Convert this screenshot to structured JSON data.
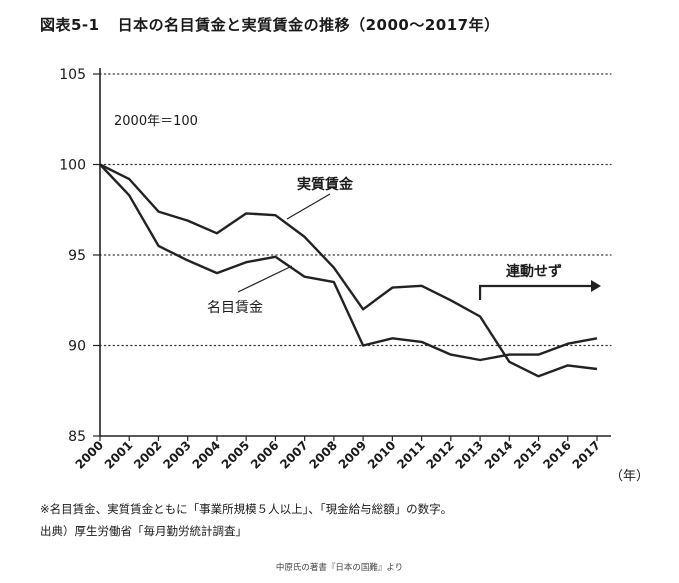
{
  "figure": {
    "number": "図表5-1",
    "title": "日本の名目賃金と実質賃金の推移（2000～2017年）"
  },
  "chart_data": {
    "type": "line",
    "x": [
      "2000",
      "2001",
      "2002",
      "2003",
      "2004",
      "2005",
      "2006",
      "2007",
      "2008",
      "2009",
      "2010",
      "2011",
      "2012",
      "2013",
      "2014",
      "2015",
      "2016",
      "2017"
    ],
    "xunit": "（年）",
    "ylim": [
      85,
      105
    ],
    "yticks": [
      85,
      90,
      95,
      100,
      105
    ],
    "dotted_gridlines_at": [
      90,
      95,
      100,
      105
    ],
    "series": [
      {
        "name": "実質賃金",
        "values": [
          100,
          99.2,
          97.4,
          96.9,
          96.2,
          97.3,
          97.2,
          96.0,
          94.3,
          92.0,
          93.2,
          93.3,
          92.5,
          91.6,
          89.1,
          88.3,
          88.9,
          88.7
        ]
      },
      {
        "name": "名目賃金",
        "values": [
          100,
          98.3,
          95.5,
          94.7,
          94.0,
          94.6,
          94.9,
          93.8,
          93.5,
          90.0,
          90.4,
          90.2,
          89.5,
          89.2,
          89.5,
          89.5,
          90.1,
          90.4
        ]
      }
    ],
    "annotations": {
      "base": "2000年＝100",
      "decoupled": "連動せず"
    }
  },
  "footnotes": [
    "※名目賃金、実質賃金ともに「事業所規模５人以上」、「現金給与総額」の数字。",
    "出典）厚生労働省「毎月勤労統計調査」"
  ],
  "credit": "中原氏の著書『日本の国難』より",
  "colors": {
    "line": "#222222",
    "grid": "#333333",
    "text": "#1a1a1a"
  }
}
